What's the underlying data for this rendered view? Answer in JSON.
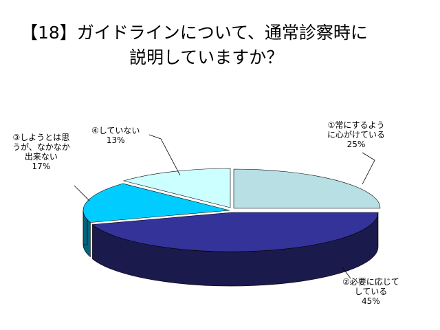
{
  "title": {
    "line1": "【18】ガイドラインについて、通常診察時に",
    "line2": "説明していますか？"
  },
  "chart_data": {
    "type": "pie",
    "title": "【18】ガイドラインについて、通常診察時に説明していますか？",
    "style": "3d-exploded",
    "categories": [
      "①常にするように心がけている",
      "②必要に応じてしている",
      "③しようとは思うが、なかなか出来ない",
      "④していない"
    ],
    "values": [
      25,
      45,
      17,
      13
    ],
    "value_suffix": "%",
    "colors": [
      "#b8dfe3",
      "#333399",
      "#00ccff",
      "#ccffff"
    ],
    "labels": [
      {
        "lines": [
          "①常にするよう",
          "に心がけている",
          "25%"
        ]
      },
      {
        "lines": [
          "②必要に応じて",
          "している",
          "45%"
        ]
      },
      {
        "lines": [
          "③しようとは思",
          "うが、なかなか",
          "出来ない",
          "17%"
        ]
      },
      {
        "lines": [
          "④していない",
          "13%"
        ]
      }
    ]
  }
}
